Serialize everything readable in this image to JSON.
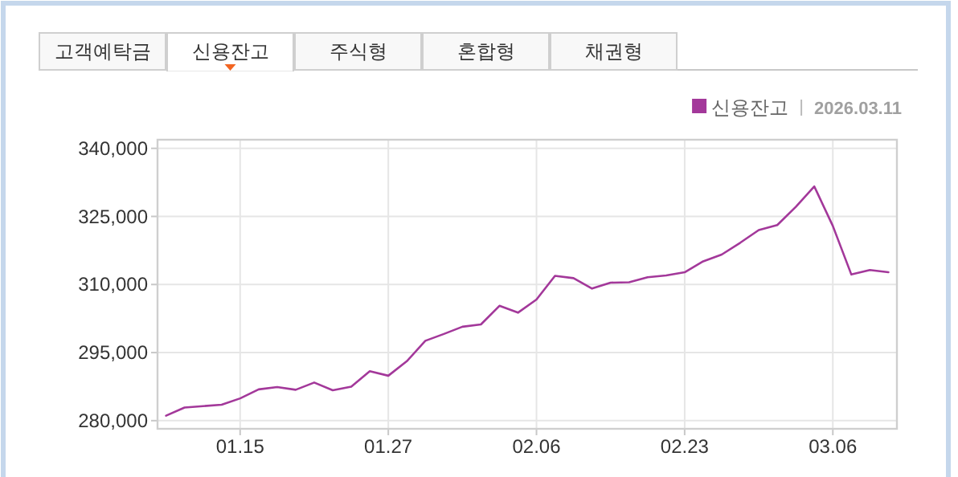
{
  "chart_data": {
    "type": "line",
    "subtitle": "2026.03.11",
    "annotations": [
      "고객예탁금",
      "신용잔고",
      "주식형",
      "혼합형",
      "채권형"
    ],
    "categories": [
      null,
      null,
      null,
      null,
      "01.15",
      null,
      null,
      null,
      null,
      null,
      null,
      null,
      "01.27",
      null,
      null,
      null,
      null,
      null,
      null,
      null,
      "02.06",
      null,
      null,
      null,
      null,
      null,
      null,
      null,
      "02.23",
      null,
      null,
      null,
      null,
      null,
      null,
      null,
      "03.06",
      null,
      null,
      null
    ],
    "series": [
      {
        "name": "신용잔고",
        "color": "#a3389a",
        "values": [
          281100,
          282900,
          283200,
          283500,
          284900,
          286900,
          287400,
          286800,
          288400,
          286700,
          287500,
          290900,
          289900,
          293100,
          297600,
          299100,
          300700,
          301200,
          305300,
          303800,
          306700,
          311900,
          311400,
          309100,
          310400,
          310500,
          311600,
          312000,
          312700,
          315100,
          316600,
          319200,
          322000,
          323100,
          327100,
          331600,
          322900,
          312200,
          313200,
          312700
        ]
      }
    ],
    "ylim": [
      278200,
      341900
    ],
    "yticks": [
      {
        "value": 280000,
        "label": "280,000"
      },
      {
        "value": 295000,
        "label": "295,000"
      },
      {
        "value": 310000,
        "label": "310,000"
      },
      {
        "value": 325000,
        "label": "325,000"
      },
      {
        "value": 340000,
        "label": "340,000"
      }
    ],
    "grid": true,
    "legend": "top right",
    "marker": "none",
    "line_style": "solid"
  }
}
